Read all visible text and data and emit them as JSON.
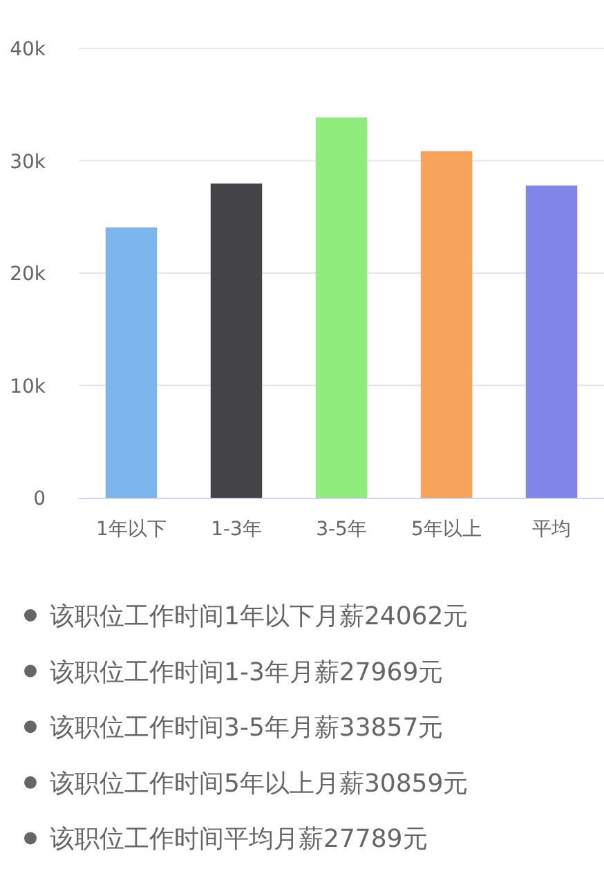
{
  "chart_data": {
    "type": "bar",
    "categories": [
      "1年以下",
      "1-3年",
      "3-5年",
      "5年以上",
      "平均"
    ],
    "values": [
      24062,
      27969,
      33857,
      30859,
      27789
    ],
    "colors": [
      "#7cb5ec",
      "#434348",
      "#90ed7d",
      "#f7a35c",
      "#8085e9"
    ],
    "ylim": [
      0,
      40000
    ],
    "yticks": [
      0,
      {
        "value": 10000,
        "label": "10k"
      },
      {
        "value": 20000,
        "label": "20k"
      },
      {
        "value": 30000,
        "label": "30k"
      },
      {
        "value": 40000,
        "label": "40k"
      }
    ],
    "grid": "y",
    "annotations": [
      "该职位工作时间1年以下月薪24062元",
      "该职位工作时间1-3年月薪27969元",
      "该职位工作时间3-5年月薪33857元",
      "该职位工作时间5年以上月薪30859元",
      "该职位工作时间平均月薪27789元"
    ]
  }
}
